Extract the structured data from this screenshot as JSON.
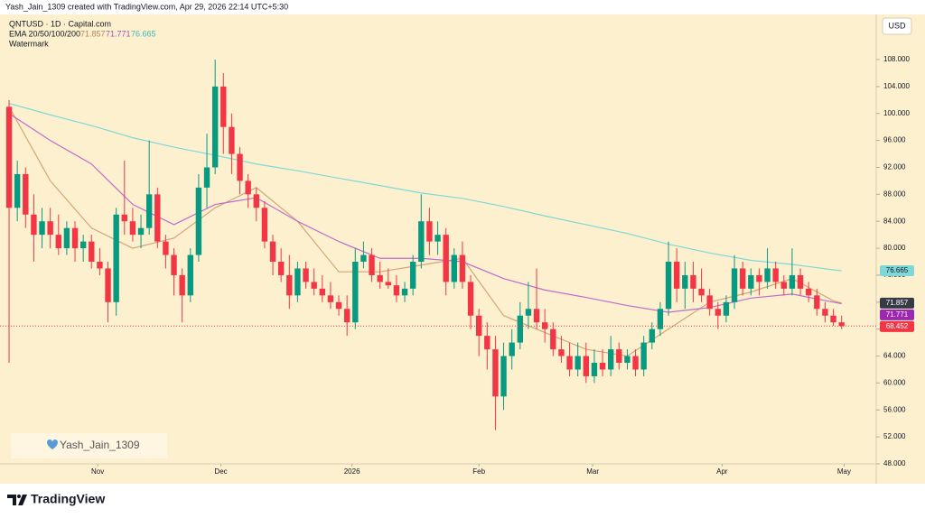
{
  "chart_data": {
    "type": "candlestick",
    "header": "Yash_Jain_1309 created with TradingView.com, Apr 29, 2026 22:14 UTC+5:30",
    "title": "QNTUSD · 1D · Capital.com",
    "indicator_label": "EMA 20/50/100/200",
    "watermark_label": "Watermark",
    "currency": "USD",
    "watermark": "Yash_Jain_1309",
    "brand": "TradingView",
    "up_color": "#089981",
    "down_color": "#f23645",
    "candles": {
      "open": [
        101,
        86,
        91,
        85,
        82,
        84,
        82,
        80,
        83,
        80,
        81,
        78,
        77,
        72,
        85,
        84,
        82,
        83,
        88,
        81,
        79,
        76,
        73,
        79,
        89,
        92,
        104,
        98,
        94,
        90,
        88,
        86,
        81,
        78,
        76,
        73,
        77,
        75,
        74,
        73,
        72,
        71,
        69,
        78,
        79,
        76,
        75,
        74.5,
        73,
        74,
        78,
        84,
        81,
        82,
        75,
        79,
        75,
        70,
        67,
        65,
        58,
        64,
        66,
        70,
        71,
        69,
        68,
        65,
        64,
        62,
        64,
        61,
        63,
        62,
        65,
        63,
        64,
        62,
        66,
        68,
        71,
        78,
        74,
        76,
        74,
        73,
        71,
        70,
        72,
        77,
        74,
        76,
        75,
        77,
        75,
        74,
        76,
        74,
        73,
        71,
        70,
        69
      ],
      "high": [
        102,
        93,
        92,
        88,
        86,
        86,
        85,
        84,
        84,
        82,
        82,
        80,
        78,
        86,
        93,
        86,
        85,
        96,
        89,
        82,
        80,
        77,
        80,
        91,
        97,
        108,
        106,
        100,
        95,
        91,
        89,
        87,
        82,
        80,
        79,
        78,
        78,
        77,
        76,
        75,
        73,
        73,
        80,
        81,
        80,
        78,
        77,
        76,
        75,
        79,
        88,
        86,
        84,
        83,
        80,
        81,
        76,
        71,
        69,
        67,
        66,
        68,
        72,
        75,
        77,
        71,
        69,
        67,
        66,
        66,
        66,
        65,
        65,
        67,
        66,
        65,
        65,
        67,
        69,
        72,
        81,
        80,
        78,
        78,
        77,
        74,
        72,
        73,
        79,
        78,
        77,
        77,
        80,
        78,
        76,
        80,
        77,
        75,
        74,
        72,
        71,
        70
      ],
      "low": [
        63,
        84,
        83,
        78,
        80,
        80,
        79,
        79,
        78,
        78,
        77,
        76,
        69,
        70,
        82,
        81,
        80,
        82,
        80,
        77,
        73,
        69,
        72,
        78,
        86,
        91,
        94,
        91,
        88,
        86,
        84,
        80,
        76,
        75,
        71,
        72,
        74,
        73,
        72,
        71,
        70,
        67,
        68,
        77,
        75,
        74,
        74,
        72,
        72,
        73,
        77,
        79,
        79,
        73,
        74,
        74,
        68,
        64,
        62,
        53,
        56,
        62,
        65,
        68,
        68,
        66,
        64,
        63,
        61,
        61,
        60,
        60,
        61,
        61,
        62,
        62,
        61,
        61,
        65,
        67,
        70,
        72,
        71,
        72,
        72,
        70,
        68,
        69,
        71,
        73,
        73,
        73,
        74,
        74,
        73,
        73,
        73,
        72,
        70,
        69,
        68.5,
        68
      ],
      "close": [
        86,
        91,
        85,
        82,
        84,
        82,
        80,
        83,
        80,
        81,
        78,
        77,
        72,
        85,
        84,
        82,
        83,
        88,
        81,
        79,
        76,
        73,
        79,
        89,
        92,
        104,
        98,
        94,
        90,
        88,
        86,
        81,
        78,
        76,
        73,
        77,
        75,
        74,
        73,
        72,
        71,
        69,
        78,
        79,
        76,
        75,
        74.5,
        73,
        74,
        78,
        84,
        81,
        82,
        75,
        79,
        75,
        70,
        67,
        65,
        58,
        64,
        66,
        70,
        71,
        69,
        68,
        65,
        64,
        62,
        64,
        61,
        63,
        62,
        65,
        63,
        64,
        62,
        66,
        68,
        71,
        78,
        74,
        76,
        74,
        73,
        71,
        70,
        72,
        77,
        74,
        76,
        75,
        77,
        75,
        74,
        76,
        74,
        73,
        71,
        70,
        69,
        68.452
      ]
    },
    "series": [
      {
        "color": "#d2a679",
        "x": [
          0,
          5,
          10,
          15,
          20,
          25,
          30,
          35,
          40,
          45,
          50,
          55,
          60,
          65,
          70,
          75,
          80,
          85,
          90,
          95,
          100,
          101
        ],
        "values": [
          101,
          90,
          83,
          80,
          81.5,
          86,
          89,
          84,
          76.5,
          76.5,
          77.5,
          78.5,
          70,
          67.5,
          65,
          64,
          68,
          72,
          73.5,
          75.5,
          72.2,
          71.857
        ]
      },
      {
        "color": "#c16bcb",
        "x": [
          0,
          5,
          10,
          15,
          20,
          25,
          30,
          35,
          40,
          45,
          50,
          55,
          60,
          65,
          70,
          75,
          80,
          85,
          90,
          95,
          100,
          101
        ],
        "values": [
          100,
          96,
          92.5,
          86.5,
          83.5,
          86.5,
          87.5,
          84,
          81,
          78.5,
          78.5,
          78,
          75.5,
          73.8,
          72.7,
          71.5,
          70.5,
          71.2,
          72.6,
          73.2,
          72,
          71.771
        ]
      },
      {
        "color": "#7fd8d8",
        "x": [
          0,
          5,
          10,
          15,
          20,
          25,
          30,
          35,
          40,
          45,
          50,
          55,
          60,
          65,
          70,
          75,
          80,
          85,
          90,
          95,
          100,
          101
        ],
        "values": [
          101.5,
          99.8,
          98.2,
          96.4,
          95,
          93.8,
          92.5,
          91.5,
          90.4,
          89.3,
          88.2,
          87.4,
          86.2,
          84.8,
          83.5,
          82.2,
          80.6,
          79.3,
          78.2,
          77.6,
          76.8,
          76.665
        ]
      }
    ],
    "ylim": [
      48,
      114.7
    ],
    "yticks": [
      {
        "value": 48,
        "label": "48.000"
      },
      {
        "value": 52,
        "label": "52.000"
      },
      {
        "value": 56,
        "label": "56.000"
      },
      {
        "value": 60,
        "label": "60.000"
      },
      {
        "value": 64,
        "label": "64.000"
      },
      {
        "value": 68,
        "label": "68.000"
      },
      {
        "value": 72,
        "label": "72.000"
      },
      {
        "value": 76,
        "label": "76.000"
      },
      {
        "value": 80,
        "label": "80.000"
      },
      {
        "value": 84,
        "label": "84.000"
      },
      {
        "value": 88,
        "label": "88.000"
      },
      {
        "value": 92,
        "label": "92.000"
      },
      {
        "value": 96,
        "label": "96.000"
      },
      {
        "value": 100,
        "label": "100.000"
      },
      {
        "value": 104,
        "label": "104.000"
      },
      {
        "value": 108,
        "label": "108.000"
      }
    ],
    "xlim": [
      -1.1,
      105.2
    ],
    "xticks": [
      {
        "value": 10.75,
        "label": "Nov"
      },
      {
        "value": 25.7,
        "label": "Dec"
      },
      {
        "value": 41.6,
        "label": "2026"
      },
      {
        "value": 57,
        "label": "Feb"
      },
      {
        "value": 70.8,
        "label": "Mar"
      },
      {
        "value": 86.5,
        "label": "Apr"
      },
      {
        "value": 101.3,
        "label": "May"
      }
    ]
  }
}
